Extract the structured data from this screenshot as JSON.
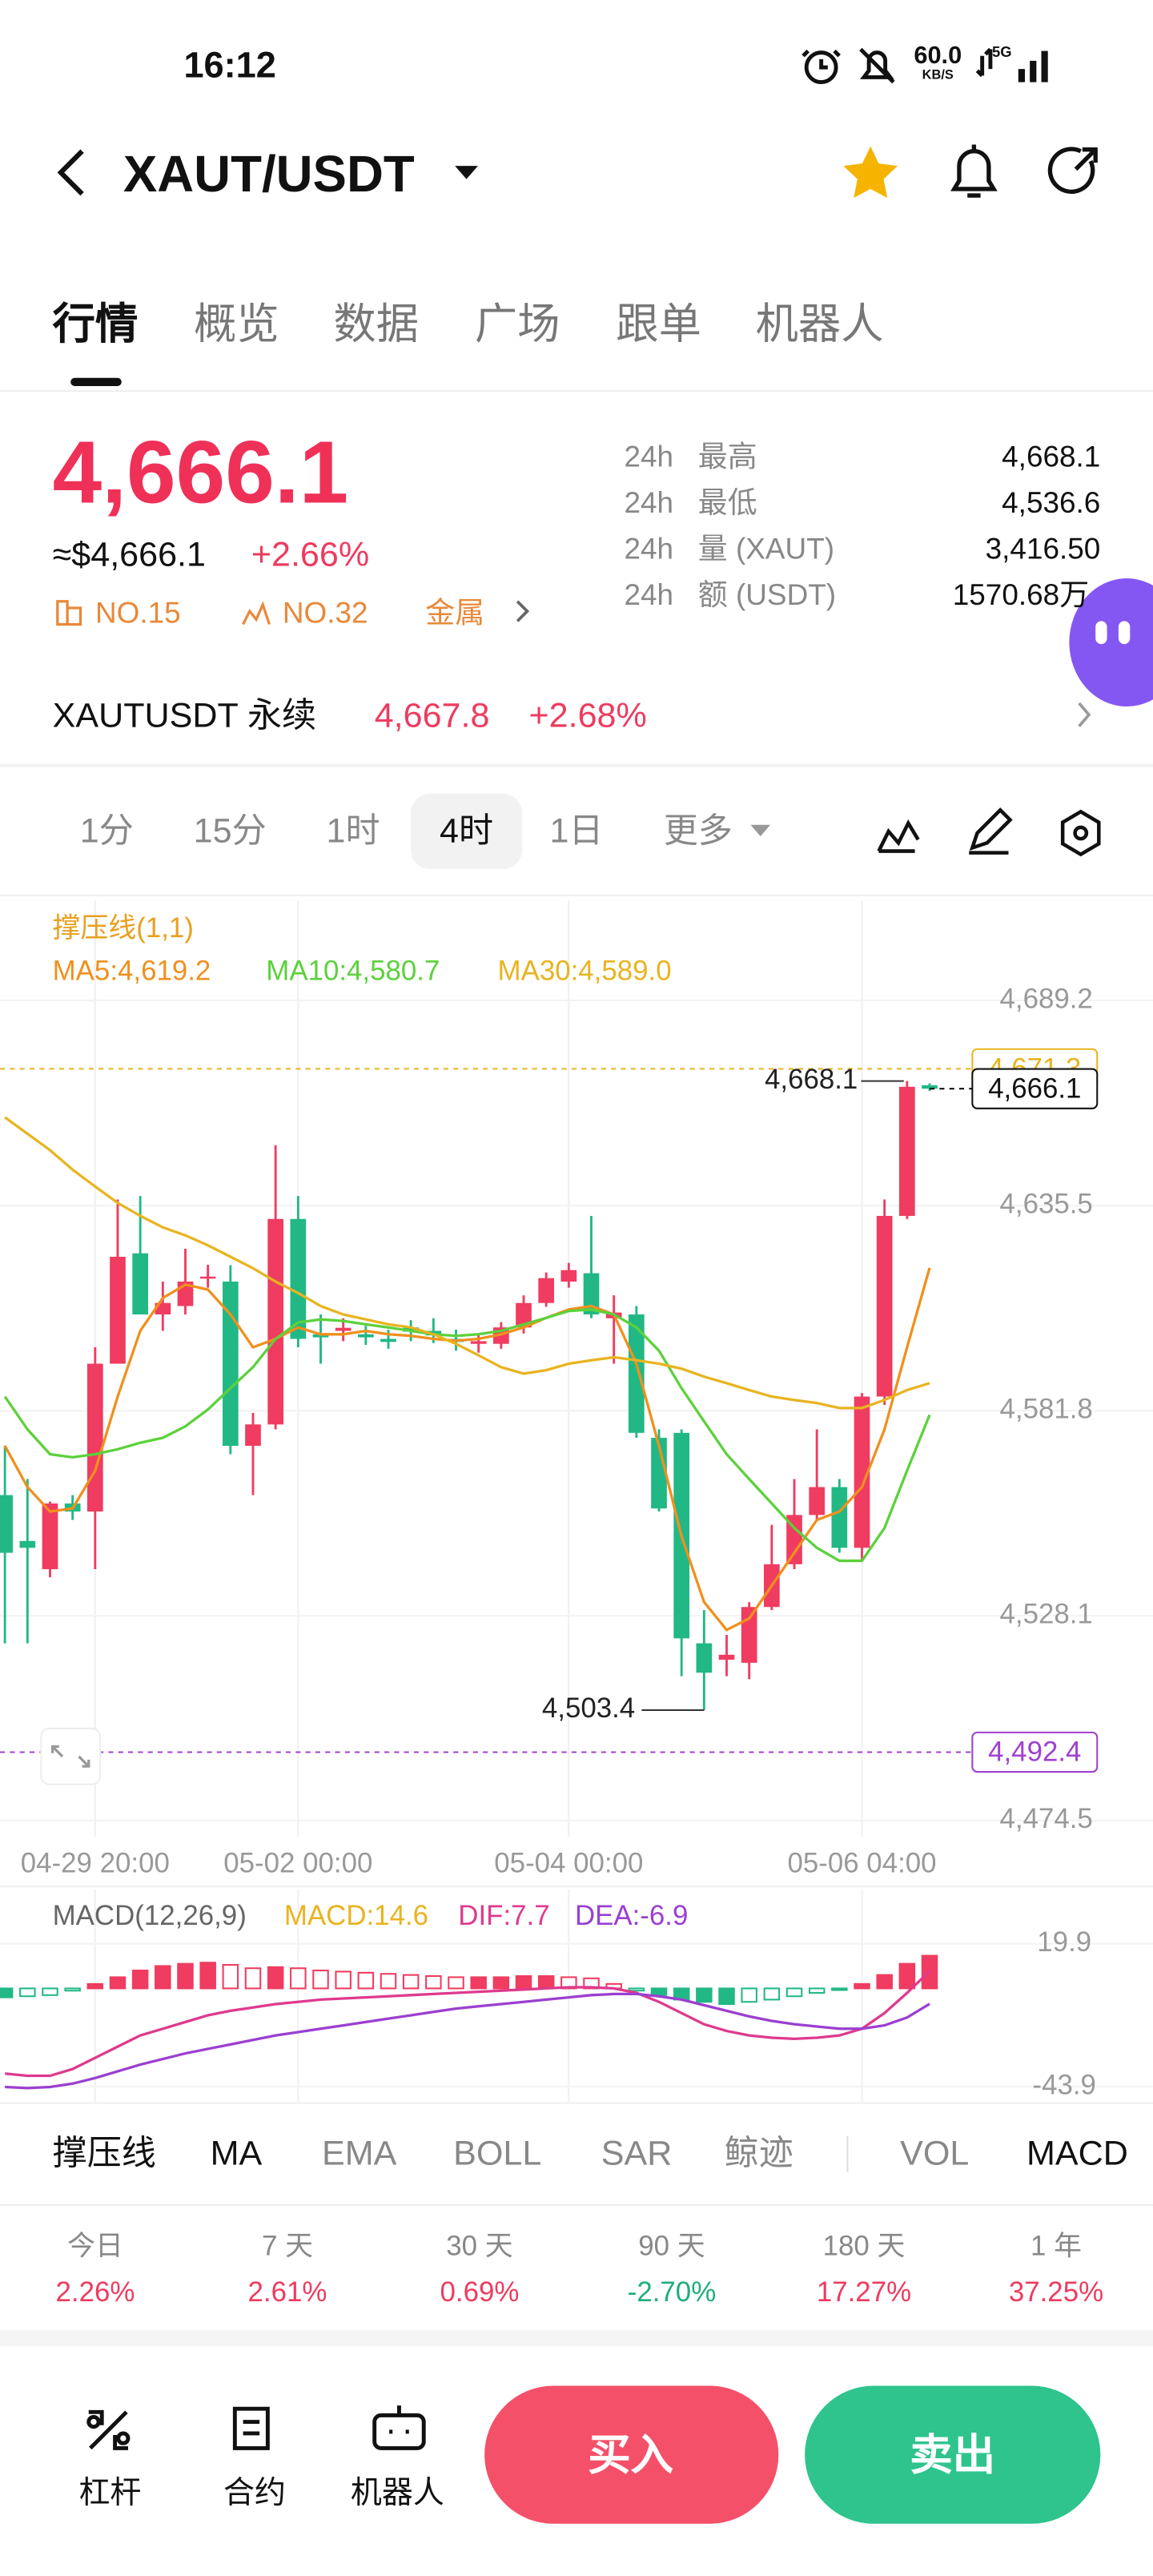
{
  "status_bar": {
    "time": "16:12",
    "speed": "60.0",
    "speed_unit": "KB/S",
    "network": "5G"
  },
  "header": {
    "pair": "XAUT/USDT"
  },
  "tabs": [
    "行情",
    "概览",
    "数据",
    "广场",
    "跟单",
    "机器人"
  ],
  "ticker": {
    "price": "4,666.1",
    "usd_price": "≈$4,666.1",
    "change": "+2.66%",
    "rank_1": "NO.15",
    "rank_2": "NO.32",
    "sector": "金属"
  },
  "stats": [
    {
      "period": "24h",
      "label": "最高",
      "value": "4,668.1"
    },
    {
      "period": "24h",
      "label": "最低",
      "value": "4,536.6"
    },
    {
      "period": "24h",
      "label": "量 (XAUT)",
      "value": "3,416.50"
    },
    {
      "period": "24h",
      "label": "额 (USDT)",
      "value": "1570.68万"
    }
  ],
  "perpetual": {
    "name": "XAUTUSDT 永续",
    "price": "4,667.8",
    "change": "+2.68%"
  },
  "intervals": [
    "1分",
    "15分",
    "1时",
    "4时",
    "1日",
    "更多"
  ],
  "chart_data": [
    {
      "type": "candlestick",
      "indicator": "撑压线(1,1)",
      "up_color": "#ef3c60",
      "down_color": "#22b886",
      "grid": true,
      "categories": [
        null,
        null,
        null,
        null,
        "04-29 20:00",
        null,
        null,
        null,
        null,
        null,
        null,
        null,
        null,
        "05-02 00:00",
        null,
        null,
        null,
        null,
        null,
        null,
        null,
        null,
        null,
        null,
        null,
        "05-04 00:00",
        null,
        null,
        null,
        null,
        null,
        null,
        null,
        null,
        null,
        null,
        null,
        null,
        "05-06 04:00",
        null,
        null,
        null
      ],
      "open": [
        4559.7,
        4547.7,
        4540.3,
        4557.5,
        4555.4,
        4594.1,
        4623.0,
        4607.0,
        4609.2,
        4616.5,
        4615.6,
        4572.6,
        4578.2,
        4632.0,
        4601.8,
        4602.7,
        4601.8,
        4600.6,
        4603.6,
        4602.7,
        4600.6,
        4599.3,
        4599.3,
        4603.6,
        4610.0,
        4615.6,
        4617.8,
        4606.0,
        4607.0,
        4574.7,
        4576.0,
        4520.9,
        4516.6,
        4515.8,
        4530.4,
        4541.6,
        4554.5,
        4561.8,
        4545.9,
        4585.5,
        4632.8,
        4667.0
      ],
      "high": [
        4572.6,
        4563.9,
        4558.0,
        4559.7,
        4598.4,
        4637.1,
        4638.0,
        4615.6,
        4624.2,
        4620.0,
        4619.9,
        4581.2,
        4651.3,
        4638.0,
        4607.0,
        4606.0,
        4604.0,
        4603.0,
        4605.5,
        4606.0,
        4603.0,
        4602.0,
        4605.0,
        4612.0,
        4618.0,
        4620.5,
        4632.8,
        4612.0,
        4609.2,
        4576.9,
        4576.9,
        4529.6,
        4523.1,
        4531.7,
        4551.9,
        4563.9,
        4576.9,
        4563.9,
        4586.4,
        4637.1,
        4668.1,
        4667.5
      ],
      "low": [
        4520.9,
        4520.9,
        4538.2,
        4553.2,
        4540.3,
        4594.1,
        4607.0,
        4602.7,
        4607.0,
        4614.0,
        4570.4,
        4559.7,
        4576.9,
        4598.4,
        4594.1,
        4600.0,
        4599.0,
        4598.0,
        4600.0,
        4599.5,
        4597.5,
        4597.0,
        4598.0,
        4602.0,
        4609.0,
        4614.0,
        4606.0,
        4594.1,
        4574.7,
        4555.4,
        4512.3,
        4503.4,
        4512.3,
        4511.5,
        4529.6,
        4540.3,
        4553.2,
        4544.6,
        4542.5,
        4583.3,
        4632.0,
        4665.5
      ],
      "close": [
        4544.6,
        4545.9,
        4557.5,
        4555.4,
        4594.1,
        4622.1,
        4607.0,
        4610.0,
        4615.6,
        4616.9,
        4572.6,
        4578.2,
        4632.0,
        4600.6,
        4601.0,
        4603.5,
        4601.0,
        4599.8,
        4602.5,
        4601.5,
        4599.8,
        4600.0,
        4603.6,
        4610.0,
        4616.5,
        4618.6,
        4607.0,
        4607.5,
        4576.0,
        4556.2,
        4522.2,
        4513.2,
        4517.9,
        4530.4,
        4541.6,
        4554.5,
        4561.8,
        4545.9,
        4585.5,
        4632.8,
        4666.6,
        4666.1
      ],
      "series": [
        {
          "name": "MA5:4,619.2",
          "color": "#f0901e",
          "values": [
            4572.6,
            4561.8,
            4555.4,
            4556.2,
            4566.1,
            4585.5,
            4602.7,
            4611.3,
            4614.8,
            4613.5,
            4607.0,
            4598.4,
            4600.6,
            4603.6,
            4601.8,
            4601.8,
            4602.7,
            4601.8,
            4601.4,
            4600.6,
            4600.1,
            4600.6,
            4601.8,
            4603.6,
            4606.1,
            4608.3,
            4609.2,
            4607.0,
            4594.1,
            4572.6,
            4548.9,
            4531.7,
            4524.4,
            4527.4,
            4536.0,
            4544.6,
            4553.2,
            4555.4,
            4561.8,
            4576.9,
            4598.4,
            4619.2
          ]
        },
        {
          "name": "MA10:4,580.7",
          "color": "#5cd13c",
          "values": [
            4585.5,
            4576.9,
            4570.4,
            4569.6,
            4570.4,
            4571.7,
            4573.4,
            4574.7,
            4577.7,
            4582.1,
            4587.7,
            4593.2,
            4600.6,
            4604.9,
            4605.7,
            4605.3,
            4604.4,
            4603.6,
            4602.7,
            4601.8,
            4601.4,
            4601.8,
            4602.7,
            4604.4,
            4606.1,
            4607.9,
            4608.3,
            4607.0,
            4603.6,
            4597.5,
            4587.7,
            4579.0,
            4570.4,
            4563.9,
            4557.5,
            4551.1,
            4545.9,
            4542.5,
            4542.5,
            4551.1,
            4566.1,
            4580.7
          ]
        },
        {
          "name": "MA30:4,589.0",
          "color": "#e8b420",
          "values": [
            4658.6,
            4654.3,
            4650.0,
            4644.9,
            4640.5,
            4636.2,
            4632.8,
            4629.8,
            4627.7,
            4625.1,
            4622.1,
            4619.1,
            4615.6,
            4612.6,
            4609.2,
            4607.0,
            4605.7,
            4604.4,
            4603.6,
            4601.8,
            4599.3,
            4596.3,
            4593.2,
            4591.5,
            4592.4,
            4594.1,
            4595.0,
            4595.8,
            4595.0,
            4594.1,
            4592.8,
            4590.7,
            4589.0,
            4587.2,
            4585.5,
            4584.6,
            4583.8,
            4582.5,
            4582.5,
            4584.6,
            4587.2,
            4589.0
          ]
        }
      ],
      "ylim": [
        4470.2,
        4715.4
      ],
      "yticks": [
        {
          "value": 4689.2,
          "label": "4,689.2"
        },
        {
          "value": 4635.5,
          "label": "4,635.5"
        },
        {
          "value": 4581.8,
          "label": "4,581.8"
        },
        {
          "value": 4528.1,
          "label": "4,528.1"
        },
        {
          "value": 4474.5,
          "label": "4,474.5"
        }
      ],
      "price_lines": [
        {
          "value": 4671.3,
          "label": "4,671.3",
          "color": "#e8b420"
        },
        {
          "value": 4666.1,
          "label": "4,666.1",
          "color": "#111111"
        },
        {
          "value": 4492.4,
          "label": "4,492.4",
          "color": "#a040d0"
        }
      ],
      "high_label": {
        "value": 4668.1,
        "label": "4,668.1"
      },
      "low_label": {
        "value": 4503.4,
        "label": "4,503.4"
      }
    },
    {
      "type": "macd",
      "title": "MACD(12,26,9)",
      "up_color": "#ef3c60",
      "down_color": "#22b886",
      "histogram": {
        "name": "MACD:14.6",
        "color": "#e8b420",
        "values": [
          -4,
          -3.5,
          -3,
          -1,
          2,
          5,
          8,
          10,
          11,
          11.5,
          10.5,
          9,
          9.5,
          9,
          8,
          7.5,
          7,
          6.5,
          6,
          5.5,
          5,
          5,
          5,
          5.5,
          5.5,
          5,
          4.5,
          2,
          -1,
          -3,
          -5,
          -6,
          -7,
          -6,
          -5,
          -3.5,
          -2,
          -0.5,
          2,
          6,
          11,
          14.6
        ]
      },
      "series": [
        {
          "name": "DIF:7.7",
          "color": "#de3a8e",
          "values": [
            -38,
            -39,
            -39,
            -36,
            -31,
            -26,
            -21,
            -18,
            -15,
            -12,
            -10,
            -8.5,
            -7,
            -6,
            -5,
            -4.5,
            -4,
            -3.5,
            -3,
            -2.5,
            -2,
            -1.5,
            -1,
            -0.5,
            0,
            0.5,
            0.5,
            0,
            -2,
            -6,
            -11,
            -16,
            -19,
            -21,
            -22,
            -22.5,
            -22,
            -21,
            -18,
            -11,
            -2,
            7.7
          ]
        },
        {
          "name": "DEA:-6.9",
          "color": "#9b3fd0",
          "values": [
            -44,
            -44.5,
            -44,
            -42.5,
            -40,
            -37,
            -34,
            -31.5,
            -29,
            -27,
            -25,
            -23,
            -21,
            -19.5,
            -18,
            -16.5,
            -15,
            -13.5,
            -12,
            -10.5,
            -9,
            -8,
            -7,
            -6,
            -5,
            -4,
            -3,
            -2.5,
            -2.5,
            -3.5,
            -5,
            -7.5,
            -10,
            -12.5,
            -14.5,
            -16,
            -17,
            -18,
            -18,
            -16.5,
            -13,
            -6.9
          ]
        }
      ],
      "ylim": [
        -51.2,
        36.8
      ],
      "yticks": [
        19.9,
        -43.9
      ]
    }
  ],
  "indicator_tabs": [
    "撑压线",
    "MA",
    "EMA",
    "BOLL",
    "SAR",
    "鲸迹",
    "VOL",
    "MACD"
  ],
  "performance": [
    {
      "period": "今日",
      "value": "2.26%"
    },
    {
      "period": "7 天",
      "value": "2.61%"
    },
    {
      "period": "30 天",
      "value": "0.69%"
    },
    {
      "period": "90 天",
      "value": "-2.70%"
    },
    {
      "period": "180 天",
      "value": "17.27%"
    },
    {
      "period": "1 年",
      "value": "37.25%"
    }
  ],
  "bottom_bar": {
    "tools": [
      "杠杆",
      "合约",
      "机器人"
    ],
    "buy": "买入",
    "sell": "卖出"
  }
}
